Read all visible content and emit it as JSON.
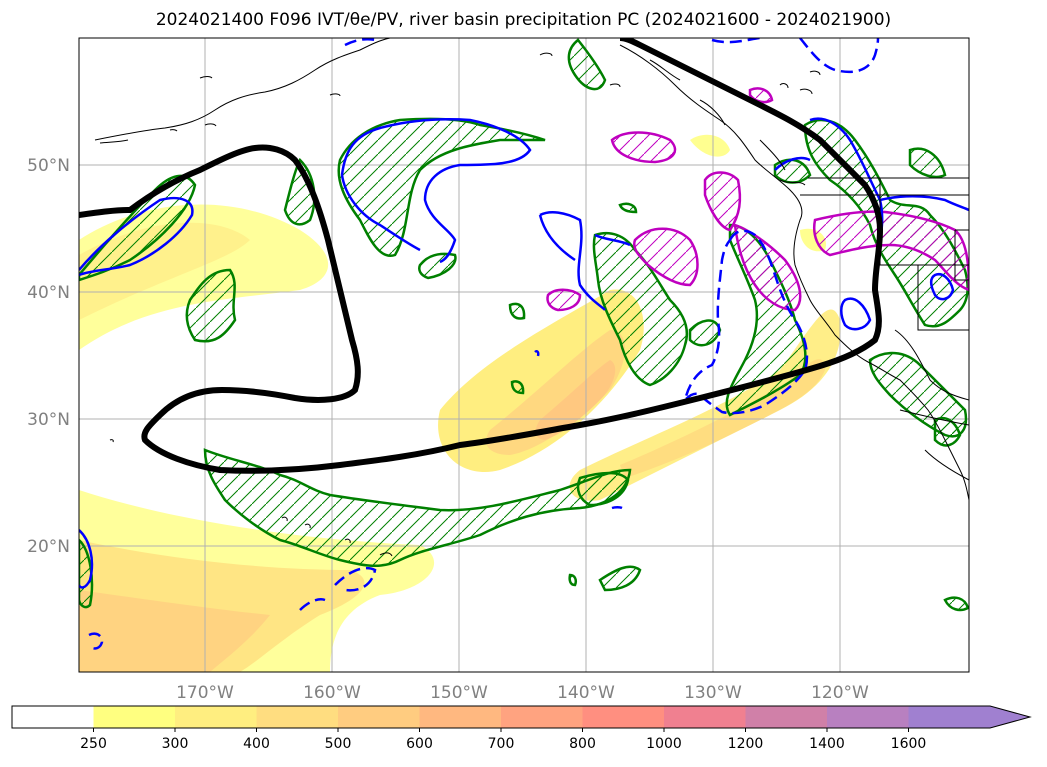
{
  "title": "2024021400 F096 IVT/θe/PV, river basin precipitation PC (2024021600 - 2024021900)",
  "map": {
    "lat_labels": [
      "50°N",
      "40°N",
      "30°N",
      "20°N"
    ],
    "lon_labels": [
      "170°W",
      "160°W",
      "150°W",
      "140°W",
      "130°W",
      "120°W"
    ],
    "extent": {
      "lon_min": -180,
      "lon_max": -110,
      "lat_min": 10,
      "lat_max": 60
    },
    "colors": {
      "ivt_contour": "#000000",
      "pv_contour": "#0000ff",
      "precip_green": "#008000",
      "precip_magenta": "#bf00bf",
      "coast": "#000000",
      "grid": "#b0b0b0"
    }
  },
  "colorbar": {
    "ticks": [
      "250",
      "300",
      "400",
      "500",
      "600",
      "700",
      "800",
      "1000",
      "1200",
      "1400",
      "1600"
    ],
    "colors": [
      "#ffff80",
      "#ffee80",
      "#ffdd80",
      "#ffcc80",
      "#ffb880",
      "#ffa380",
      "#ff8f80",
      "#f08090",
      "#d080a8",
      "#b880c0",
      "#a080d0"
    ],
    "extend": "max"
  }
}
